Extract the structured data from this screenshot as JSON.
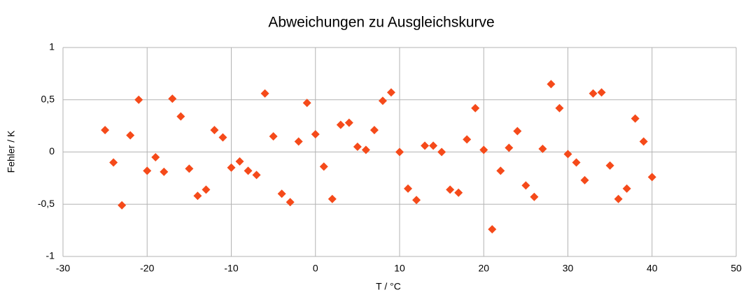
{
  "chart_data": {
    "type": "scatter",
    "title": "Abweichungen zu Ausgleichskurve",
    "x_label": "T / °C",
    "y_label": "Fehler / K",
    "x": [
      -25,
      -24,
      -23,
      -22,
      -21,
      -20,
      -19,
      -18,
      -17,
      -16,
      -15,
      -14,
      -13,
      -12,
      -11,
      -10,
      -9,
      -8,
      -7,
      -6,
      -5,
      -4,
      -3,
      -2,
      -1,
      0,
      1,
      2,
      3,
      4,
      5,
      6,
      7,
      8,
      9,
      10,
      11,
      12,
      13,
      14,
      15,
      16,
      17,
      18,
      19,
      20,
      21,
      22,
      23,
      24,
      25,
      26,
      27,
      28,
      29,
      30,
      31,
      32,
      33,
      34,
      35,
      36,
      37,
      38,
      39,
      40
    ],
    "values": [
      0.21,
      -0.1,
      -0.51,
      0.16,
      0.5,
      -0.18,
      -0.05,
      -0.19,
      0.51,
      0.34,
      -0.16,
      -0.42,
      -0.36,
      0.21,
      0.14,
      -0.15,
      -0.09,
      -0.18,
      -0.22,
      0.56,
      0.15,
      -0.4,
      -0.48,
      0.1,
      0.47,
      0.17,
      -0.14,
      -0.45,
      0.26,
      0.28,
      0.05,
      0.02,
      0.21,
      0.49,
      0.57,
      0.0,
      -0.35,
      -0.46,
      0.06,
      0.06,
      0.0,
      -0.36,
      -0.39,
      0.12,
      0.42,
      0.02,
      -0.74,
      -0.18,
      0.04,
      0.2,
      -0.32,
      -0.43,
      0.03,
      0.65,
      0.42,
      -0.02,
      -0.1,
      -0.27,
      0.56,
      0.57,
      -0.13,
      -0.45,
      -0.35,
      0.32,
      0.1,
      -0.24
    ],
    "color": "#f54a1a",
    "xlim": [
      -30,
      50
    ],
    "xticks": [
      -30,
      -20,
      -10,
      0,
      10,
      20,
      30,
      40,
      50
    ],
    "ylim": [
      -1,
      1
    ],
    "yticks": [
      -1,
      {
        "value": -0.5,
        "label": "-0,5"
      },
      0,
      {
        "value": 0.5,
        "label": "0,5"
      },
      1
    ],
    "grid": true
  }
}
